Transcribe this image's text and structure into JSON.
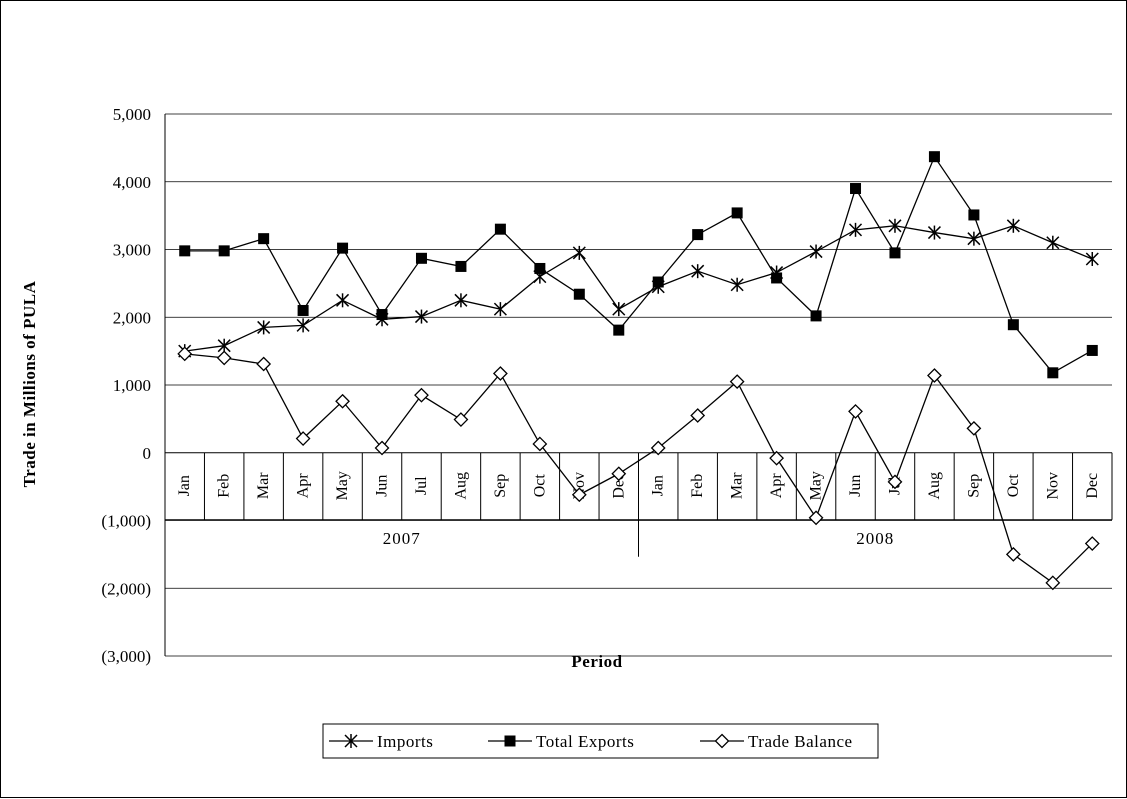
{
  "chart_data": {
    "type": "line",
    "xlabel": "Period",
    "ylabel": "Trade in Millions of PULA",
    "ylim": [
      -3000,
      5000
    ],
    "yticks": [
      5000,
      4000,
      3000,
      2000,
      1000,
      0,
      -1000,
      -2000,
      -3000
    ],
    "ytick_labels": [
      "5,000",
      "4,000",
      "3,000",
      "2,000",
      "1,000",
      "0",
      "(1,000)",
      "(2,000)",
      "(3,000)"
    ],
    "categories": [
      "Jan",
      "Feb",
      "Mar",
      "Apr",
      "May",
      "Jun",
      "Jul",
      "Aug",
      "Sep",
      "Oct",
      "Nov",
      "Dec",
      "Jan",
      "Feb",
      "Mar",
      "Apr",
      "May",
      "Jun",
      "Jul",
      "Aug",
      "Sep",
      "Oct",
      "Nov",
      "Dec"
    ],
    "groups": [
      {
        "label": "2007",
        "count": 12
      },
      {
        "label": "2008",
        "count": 12
      }
    ],
    "grid": "horizontal",
    "legend_position": "bottom",
    "series": [
      {
        "name": "Imports",
        "marker": "asterisk",
        "values": [
          1500,
          1580,
          1850,
          1880,
          2250,
          1970,
          2010,
          2250,
          2120,
          2600,
          2950,
          2120,
          2450,
          2680,
          2480,
          2660,
          2970,
          3290,
          3350,
          3250,
          3160,
          3350,
          3100,
          2860
        ]
      },
      {
        "name": "Total Exports",
        "marker": "filled-square",
        "values": [
          2980,
          2980,
          3160,
          2100,
          3020,
          2040,
          2870,
          2750,
          3300,
          2720,
          2340,
          1810,
          2520,
          3220,
          3540,
          2580,
          2020,
          3900,
          2950,
          4370,
          3510,
          1890,
          1180,
          1510
        ]
      },
      {
        "name": "Trade Balance",
        "marker": "hollow-diamond",
        "values": [
          1460,
          1400,
          1310,
          210,
          760,
          70,
          850,
          490,
          1170,
          130,
          -620,
          -310,
          70,
          550,
          1050,
          -80,
          -960,
          610,
          -430,
          1140,
          360,
          -1500,
          -1920,
          -1340
        ]
      }
    ]
  }
}
